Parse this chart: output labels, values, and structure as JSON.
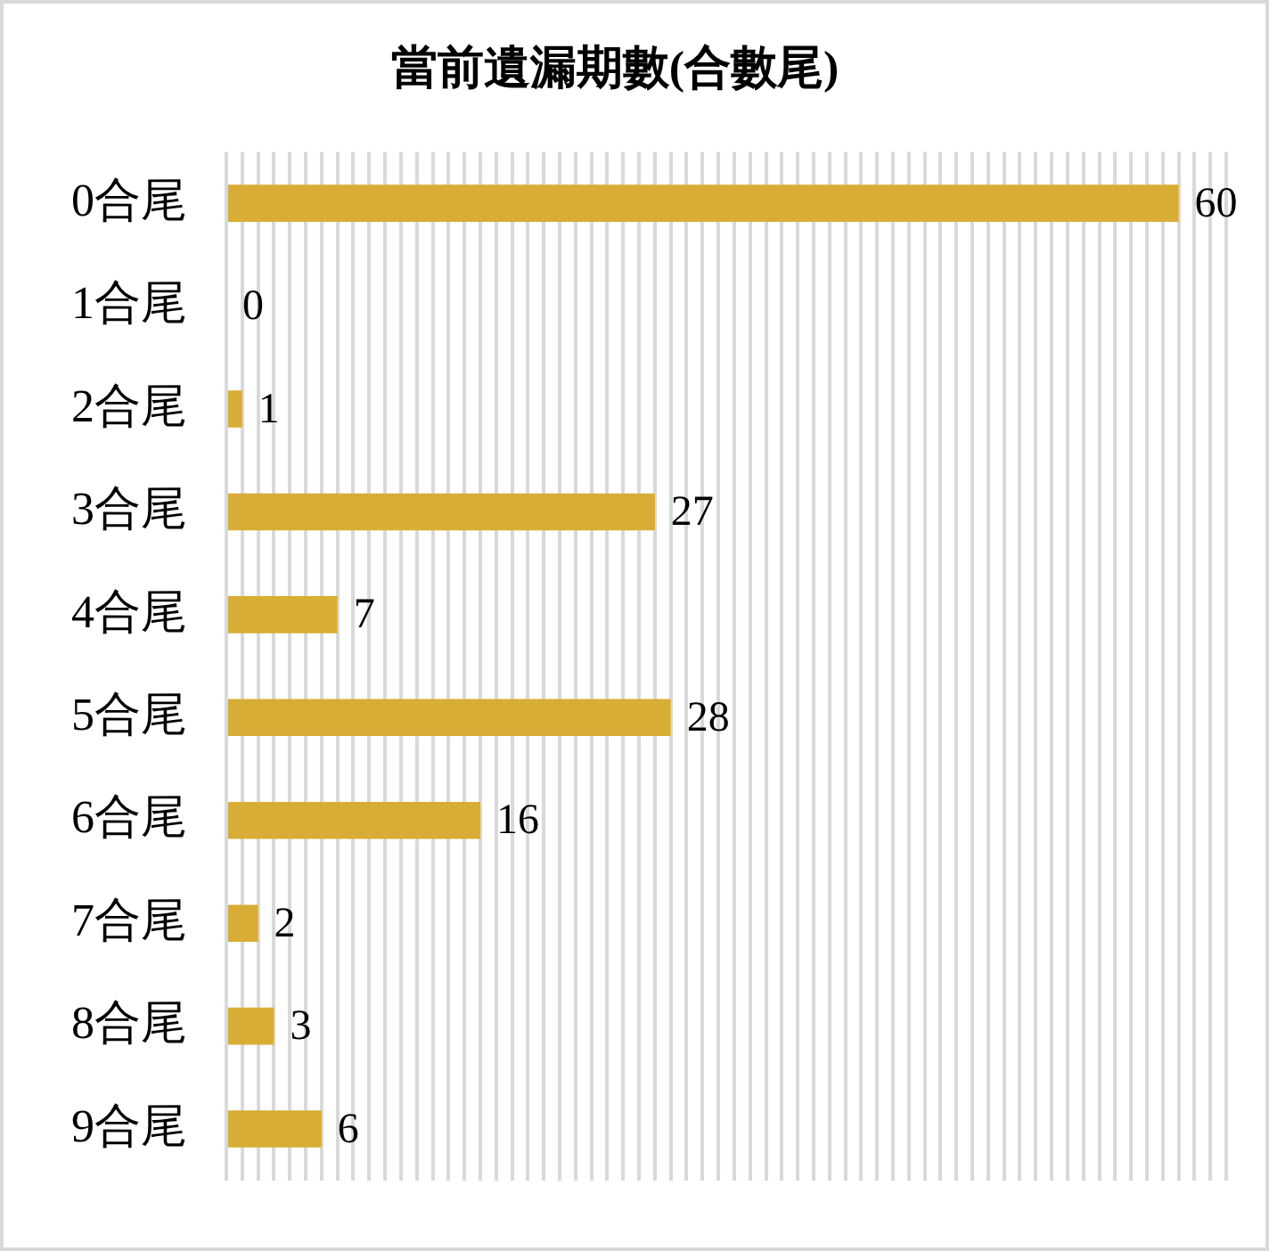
{
  "chart_data": {
    "type": "bar",
    "orientation": "horizontal",
    "title": "當前遺漏期數(合數尾)",
    "categories": [
      "0合尾",
      "1合尾",
      "2合尾",
      "3合尾",
      "4合尾",
      "5合尾",
      "6合尾",
      "7合尾",
      "8合尾",
      "9合尾"
    ],
    "values": [
      60,
      0,
      1,
      27,
      7,
      28,
      16,
      2,
      3,
      6
    ],
    "color": "#d8ad35",
    "xlim": [
      0,
      63
    ],
    "xticks": [
      {
        "value": 0,
        "label": null
      },
      {
        "value": 1,
        "label": null
      },
      {
        "value": 2,
        "label": null
      },
      {
        "value": 3,
        "label": null
      },
      {
        "value": 4,
        "label": null
      },
      {
        "value": 5,
        "label": null
      },
      {
        "value": 6,
        "label": null
      },
      {
        "value": 7,
        "label": null
      },
      {
        "value": 8,
        "label": null
      },
      {
        "value": 9,
        "label": null
      },
      {
        "value": 10,
        "label": null
      },
      {
        "value": 11,
        "label": null
      },
      {
        "value": 12,
        "label": null
      },
      {
        "value": 13,
        "label": null
      },
      {
        "value": 14,
        "label": null
      },
      {
        "value": 15,
        "label": null
      },
      {
        "value": 16,
        "label": null
      },
      {
        "value": 17,
        "label": null
      },
      {
        "value": 18,
        "label": null
      },
      {
        "value": 19,
        "label": null
      },
      {
        "value": 20,
        "label": null
      },
      {
        "value": 21,
        "label": null
      },
      {
        "value": 22,
        "label": null
      },
      {
        "value": 23,
        "label": null
      },
      {
        "value": 24,
        "label": null
      },
      {
        "value": 25,
        "label": null
      },
      {
        "value": 26,
        "label": null
      },
      {
        "value": 27,
        "label": null
      },
      {
        "value": 28,
        "label": null
      },
      {
        "value": 29,
        "label": null
      },
      {
        "value": 30,
        "label": null
      },
      {
        "value": 31,
        "label": null
      },
      {
        "value": 32,
        "label": null
      },
      {
        "value": 33,
        "label": null
      },
      {
        "value": 34,
        "label": null
      },
      {
        "value": 35,
        "label": null
      },
      {
        "value": 36,
        "label": null
      },
      {
        "value": 37,
        "label": null
      },
      {
        "value": 38,
        "label": null
      },
      {
        "value": 39,
        "label": null
      },
      {
        "value": 40,
        "label": null
      },
      {
        "value": 41,
        "label": null
      },
      {
        "value": 42,
        "label": null
      },
      {
        "value": 43,
        "label": null
      },
      {
        "value": 44,
        "label": null
      },
      {
        "value": 45,
        "label": null
      },
      {
        "value": 46,
        "label": null
      },
      {
        "value": 47,
        "label": null
      },
      {
        "value": 48,
        "label": null
      },
      {
        "value": 49,
        "label": null
      },
      {
        "value": 50,
        "label": null
      },
      {
        "value": 51,
        "label": null
      },
      {
        "value": 52,
        "label": null
      },
      {
        "value": 53,
        "label": null
      },
      {
        "value": 54,
        "label": null
      },
      {
        "value": 55,
        "label": null
      },
      {
        "value": 56,
        "label": null
      },
      {
        "value": 57,
        "label": null
      },
      {
        "value": 58,
        "label": null
      },
      {
        "value": 59,
        "label": null
      },
      {
        "value": 60,
        "label": null
      },
      {
        "value": 61,
        "label": null
      },
      {
        "value": 62,
        "label": null
      },
      {
        "value": 63,
        "label": null
      }
    ],
    "grid": "x",
    "tick_labels": "y",
    "data_labels": true
  }
}
